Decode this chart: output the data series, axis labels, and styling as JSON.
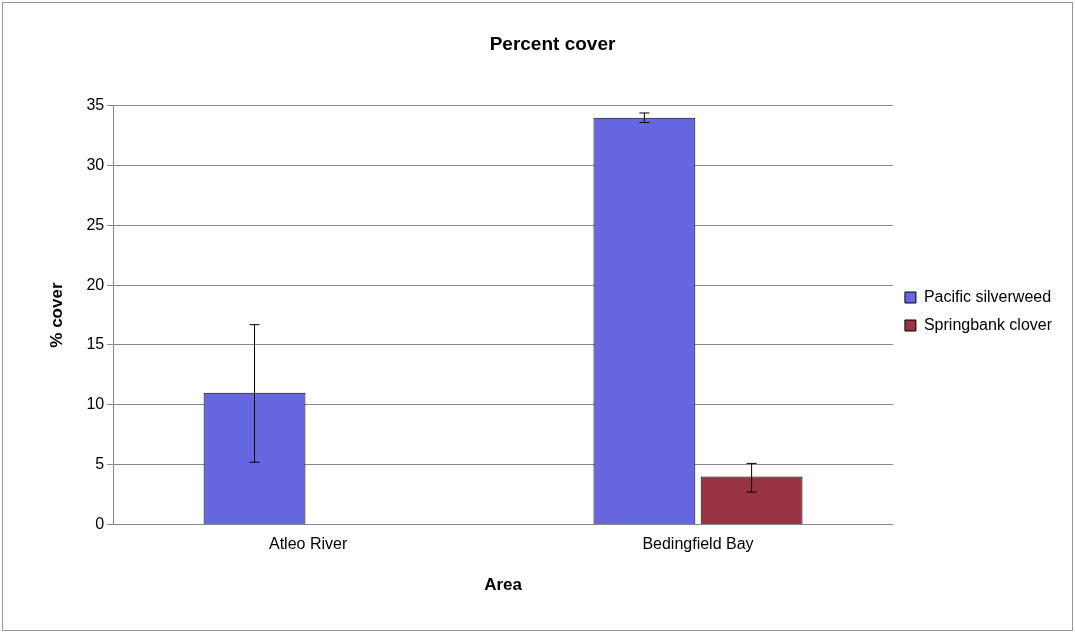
{
  "chart_data": {
    "type": "bar",
    "title": "Percent cover",
    "xlabel": "Area",
    "ylabel": "% cover",
    "categories": [
      "Atleo River",
      "Bedingfield Bay"
    ],
    "series": [
      {
        "name": "Pacific silverweed",
        "color": "#6666e0",
        "values": [
          11,
          34
        ],
        "errors": [
          [
            5.2,
            16.7
          ],
          [
            33.6,
            34.4
          ]
        ]
      },
      {
        "name": "Springbank clover",
        "color": "#993344",
        "values": [
          0,
          4
        ],
        "errors": [
          null,
          [
            2.7,
            5.1
          ]
        ]
      }
    ],
    "ylim": [
      0,
      35
    ],
    "yticks": [
      0,
      5,
      10,
      15,
      20,
      25,
      30,
      35
    ],
    "grid": "y",
    "legend": "right"
  }
}
